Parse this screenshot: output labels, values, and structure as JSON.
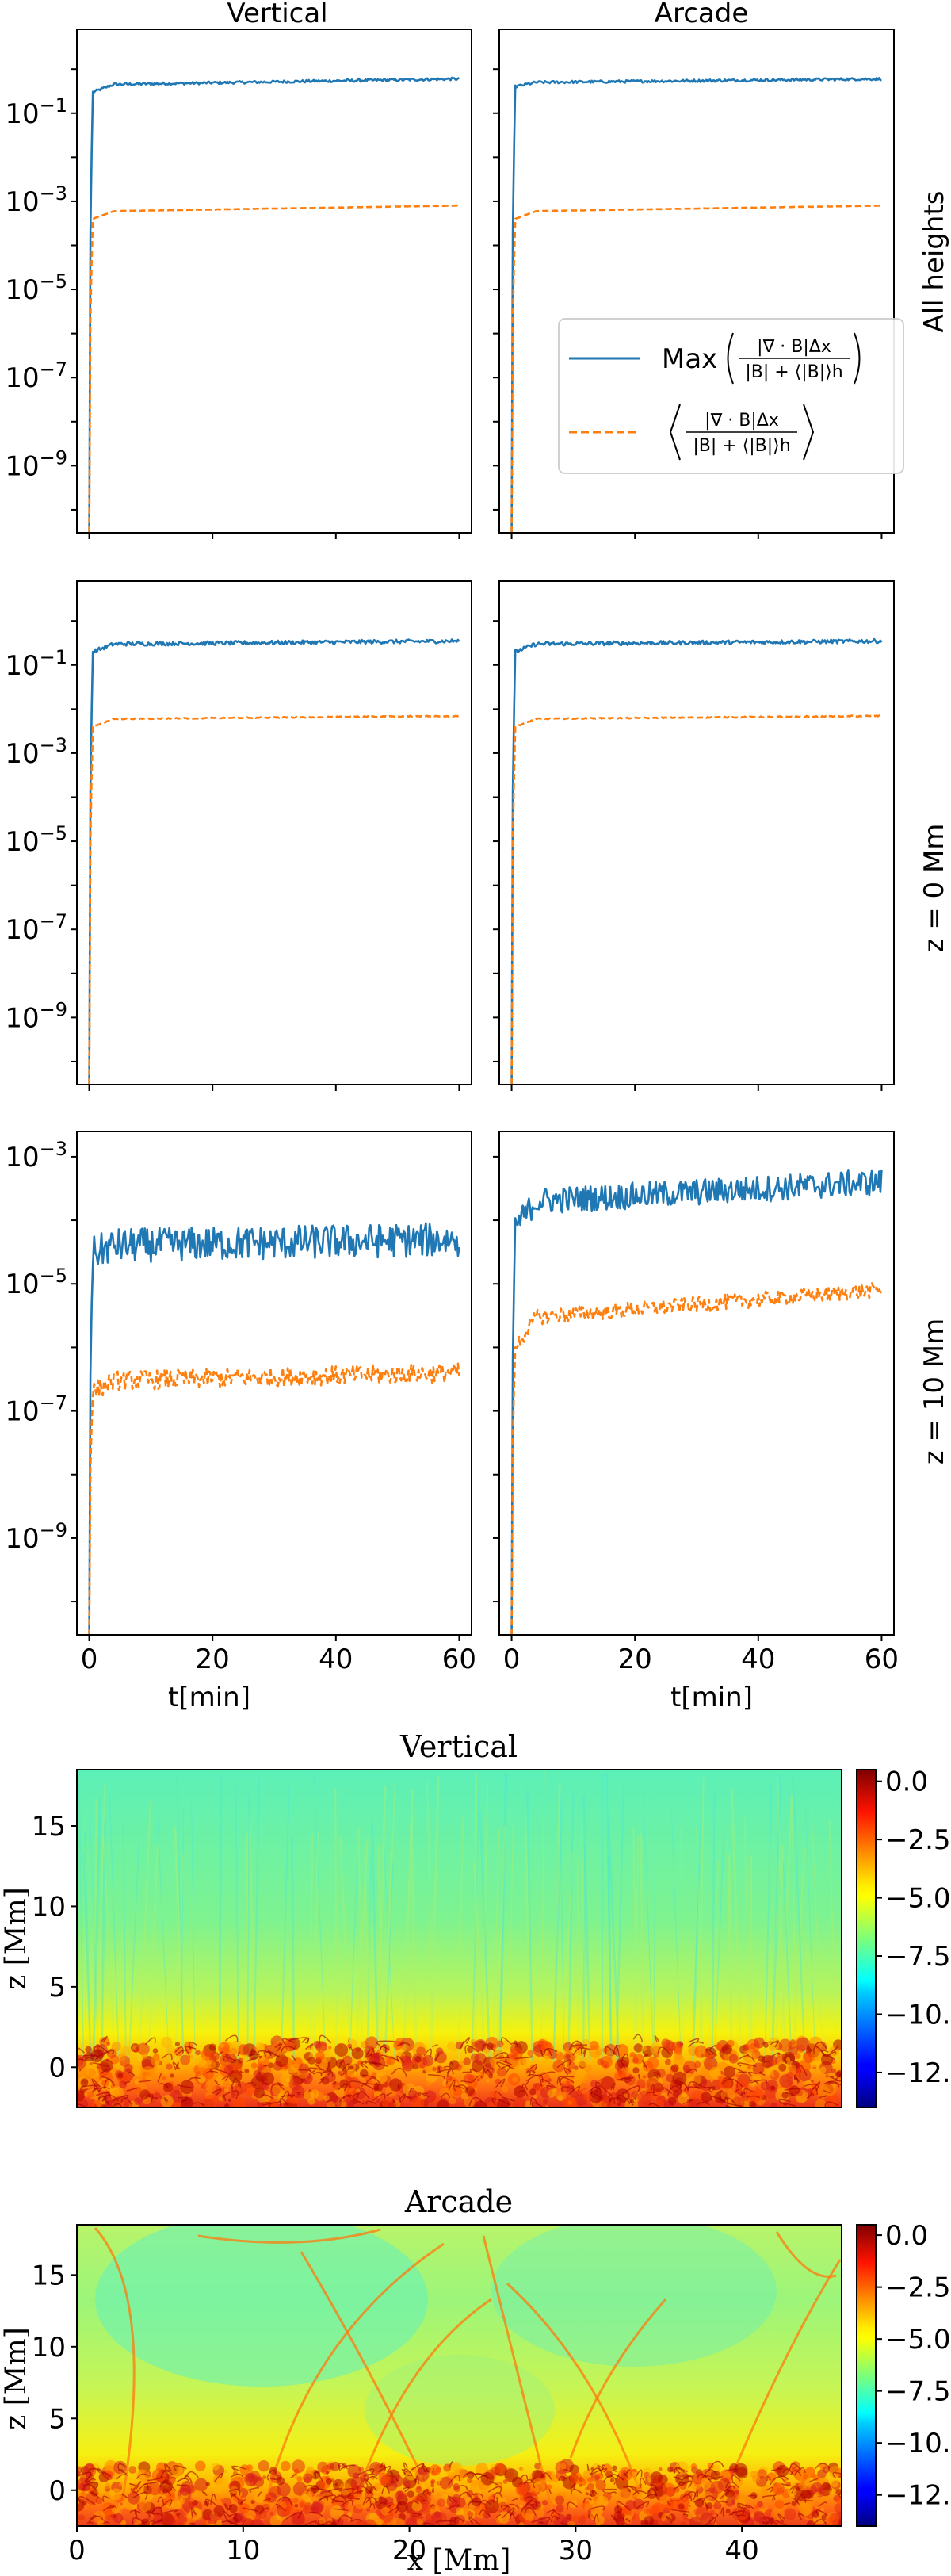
{
  "chart_data": [
    {
      "type": "line",
      "title": "Vertical",
      "row_label": "All heights",
      "xlabel": "",
      "yscale": "log",
      "xlim": [
        -2,
        62
      ],
      "ylim": [
        3e-11,
        8
      ],
      "yticks": [
        "10^-1",
        "10^-3",
        "10^-5",
        "10^-7",
        "10^-9"
      ],
      "series": [
        {
          "name": "max",
          "style": "solid",
          "color": "#1f77b4",
          "jump_level": 0.3,
          "plateau": 0.45,
          "end": 0.6,
          "noise": 0.1
        },
        {
          "name": "mean",
          "style": "dashed",
          "color": "#ff7f0e",
          "jump_level": 0.0004,
          "plateau": 0.0006,
          "end": 0.0008,
          "noise": 0.01
        }
      ]
    },
    {
      "type": "line",
      "title": "Arcade",
      "row_label": "All heights",
      "xlabel": "",
      "yscale": "log",
      "xlim": [
        -2,
        62
      ],
      "ylim": [
        3e-11,
        8
      ],
      "yticks": [],
      "legend": {
        "position": "right",
        "entries": [
          {
            "series": "max",
            "prefix": "Max"
          },
          {
            "series": "mean",
            "prefix": ""
          }
        ],
        "numerator": "|∇ · B|Δx",
        "denominator": "|B| + ⟨|B|⟩h"
      },
      "series": [
        {
          "name": "max",
          "style": "solid",
          "color": "#1f77b4",
          "jump_level": 0.4,
          "plateau": 0.5,
          "end": 0.6,
          "noise": 0.1
        },
        {
          "name": "mean",
          "style": "dashed",
          "color": "#ff7f0e",
          "jump_level": 0.0004,
          "plateau": 0.0006,
          "end": 0.0008,
          "noise": 0.01
        }
      ]
    },
    {
      "type": "line",
      "title": "",
      "row_label": "z = 0 Mm",
      "xlabel": "",
      "yscale": "log",
      "xlim": [
        -2,
        62
      ],
      "ylim": [
        3e-11,
        8
      ],
      "yticks": [
        "10^-1",
        "10^-3",
        "10^-5",
        "10^-7",
        "10^-9"
      ],
      "series": [
        {
          "name": "max",
          "style": "solid",
          "color": "#1f77b4",
          "jump_level": 0.2,
          "plateau": 0.3,
          "end": 0.35,
          "noise": 0.15
        },
        {
          "name": "mean",
          "style": "dashed",
          "color": "#ff7f0e",
          "jump_level": 0.004,
          "plateau": 0.006,
          "end": 0.007,
          "noise": 0.04
        }
      ]
    },
    {
      "type": "line",
      "title": "",
      "row_label": "z = 0 Mm",
      "xlabel": "",
      "yscale": "log",
      "xlim": [
        -2,
        62
      ],
      "ylim": [
        3e-11,
        8
      ],
      "yticks": [],
      "series": [
        {
          "name": "max",
          "style": "solid",
          "color": "#1f77b4",
          "jump_level": 0.2,
          "plateau": 0.3,
          "end": 0.35,
          "noise": 0.15
        },
        {
          "name": "mean",
          "style": "dashed",
          "color": "#ff7f0e",
          "jump_level": 0.004,
          "plateau": 0.006,
          "end": 0.007,
          "noise": 0.04
        }
      ]
    },
    {
      "type": "line",
      "title": "",
      "row_label": "z = 10 Mm",
      "xlabel": "t[min]",
      "yscale": "log",
      "xlim": [
        -2,
        62
      ],
      "ylim": [
        3e-11,
        0.0025
      ],
      "xticks": [
        "0",
        "20",
        "40",
        "60"
      ],
      "yticks": [
        "10^-3",
        "10^-5",
        "10^-7",
        "10^-9"
      ],
      "series": [
        {
          "name": "max",
          "style": "solid",
          "color": "#1f77b4",
          "jump_level": 3e-05,
          "plateau": 4e-05,
          "end": 5e-05,
          "noise": 0.9
        },
        {
          "name": "mean",
          "style": "dashed",
          "color": "#ff7f0e",
          "jump_level": 2e-07,
          "plateau": 3e-07,
          "end": 4e-07,
          "noise": 0.5
        }
      ]
    },
    {
      "type": "line",
      "title": "",
      "row_label": "z = 10 Mm",
      "xlabel": "t[min]",
      "yscale": "log",
      "xlim": [
        -2,
        62
      ],
      "ylim": [
        3e-11,
        0.0025
      ],
      "xticks": [
        "0",
        "20",
        "40",
        "60"
      ],
      "yticks": [],
      "series": [
        {
          "name": "max",
          "style": "solid",
          "color": "#1f77b4",
          "jump_level": 8e-05,
          "plateau": 0.0002,
          "end": 0.0004,
          "noise": 0.7
        },
        {
          "name": "mean",
          "style": "dashed",
          "color": "#ff7f0e",
          "jump_level": 1e-06,
          "plateau": 3e-06,
          "end": 8e-06,
          "noise": 0.4
        }
      ]
    },
    {
      "type": "heatmap",
      "title": "Vertical",
      "xlabel": "",
      "ylabel": "z [Mm]",
      "xlim": [
        0,
        46
      ],
      "ylim": [
        -2.5,
        18.5
      ],
      "yticks": [
        "0",
        "5",
        "10",
        "15"
      ],
      "colorbar": {
        "min": -14,
        "max": 0.5,
        "ticks": [
          "0.0",
          "-2.5",
          "-5.0",
          "-7.5",
          "-10.0",
          "-12.5"
        ],
        "colormap": "jet"
      }
    },
    {
      "type": "heatmap",
      "title": "Arcade",
      "xlabel": "x [Mm]",
      "ylabel": "z [Mm]",
      "xlim": [
        0,
        46
      ],
      "ylim": [
        -2.5,
        18.5
      ],
      "xticks": [
        "0",
        "10",
        "20",
        "30",
        "40"
      ],
      "yticks": [
        "0",
        "5",
        "10",
        "15"
      ],
      "colorbar": {
        "min": -14,
        "max": 0.5,
        "ticks": [
          "0.0",
          "-2.5",
          "-5.0",
          "-7.5",
          "-10.0",
          "-12.5"
        ],
        "colormap": "jet"
      }
    }
  ]
}
